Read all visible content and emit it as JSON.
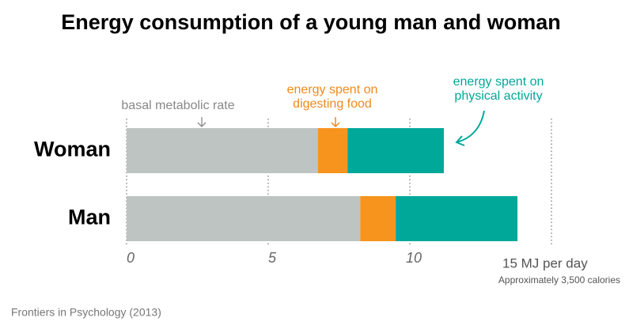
{
  "chart_data": {
    "type": "stacked-barh",
    "title": "Energy consumption of a young man and woman",
    "categories": [
      "Woman",
      "Man"
    ],
    "series": [
      {
        "color": "#bec4c1",
        "values": [
          6.75,
          8.25
        ]
      },
      {
        "color": "#f7941d",
        "values": [
          1.05,
          1.25
        ]
      },
      {
        "color": "#00a89a",
        "values": [
          3.4,
          4.3
        ]
      }
    ],
    "xlim": [
      0,
      15
    ],
    "xticks": [
      0,
      5,
      10,
      {
        "value": 15,
        "label": "15 MJ per day"
      }
    ],
    "x_note": "Approximately 3,500 calories",
    "grid": true,
    "annotations": [
      {
        "lines": [
          "basal metabolic rate"
        ],
        "color": "#888888"
      },
      {
        "lines": [
          "energy spent on",
          "digesting food"
        ],
        "color": "#f08a1c"
      },
      {
        "lines": [
          "energy spent on",
          "physical activity"
        ],
        "color": "#00a89a"
      }
    ],
    "source": "Frontiers in Psychology (2013)"
  }
}
